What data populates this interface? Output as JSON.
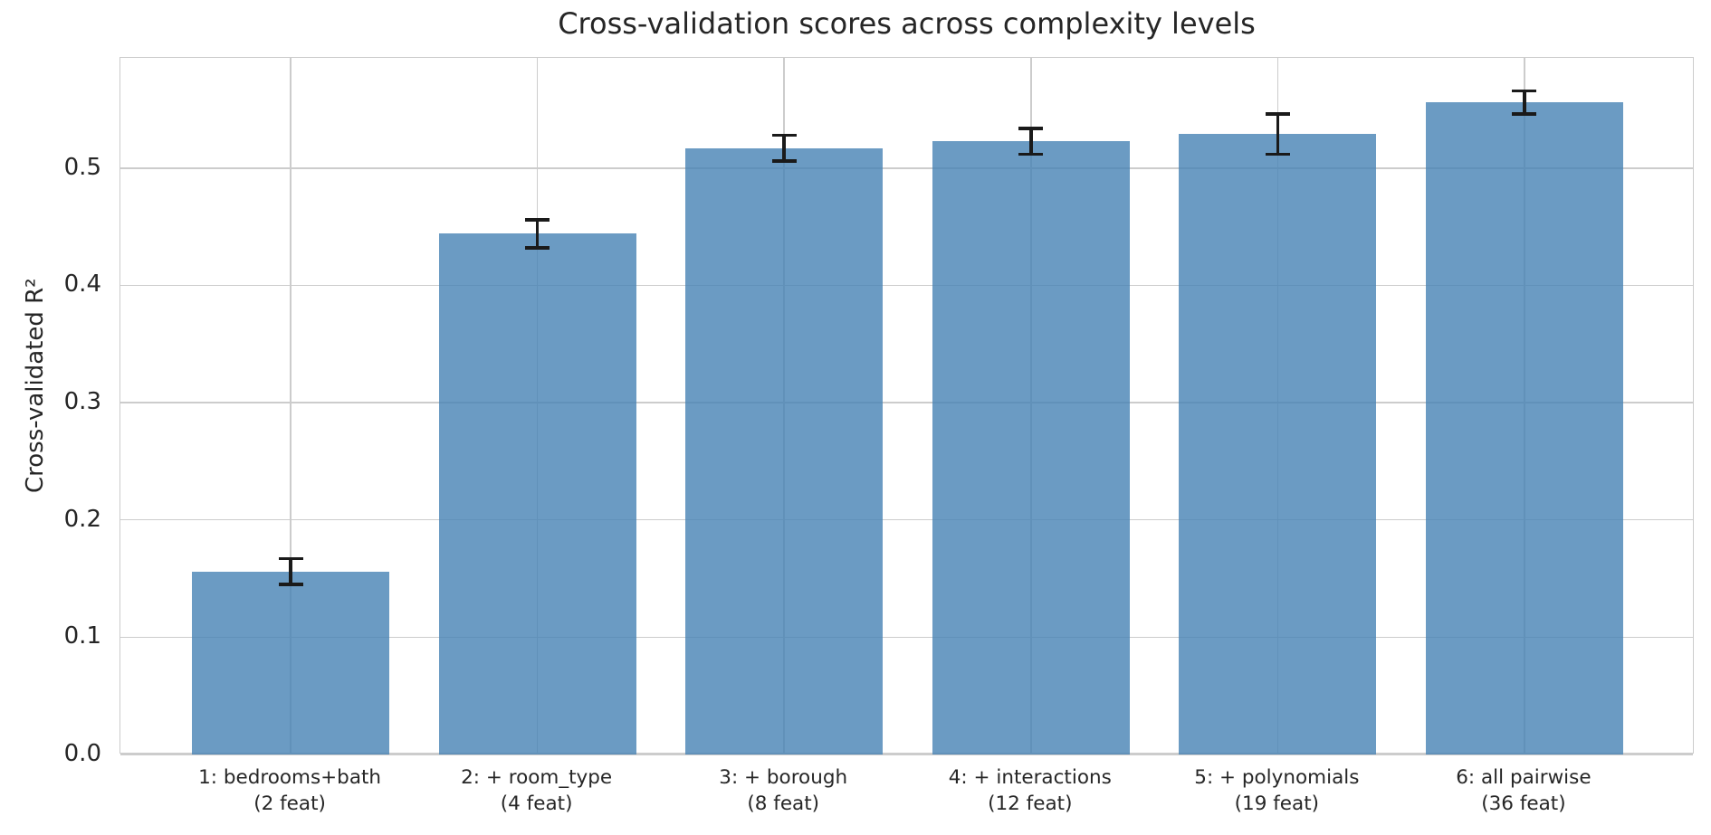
{
  "chart_data": {
    "type": "bar",
    "title": "Cross-validation scores across complexity levels",
    "xlabel": "",
    "ylabel": "Cross-validated R²",
    "categories": [
      "1: bedrooms+bath",
      "2: + room_type",
      "3: + borough",
      "4: + interactions",
      "5: + polynomials",
      "6: all pairwise"
    ],
    "category_sublabels": [
      "(2 feat)",
      "(4 feat)",
      "(8 feat)",
      "(12 feat)",
      "(19 feat)",
      "(36 feat)"
    ],
    "values": [
      0.156,
      0.444,
      0.517,
      0.523,
      0.529,
      0.556
    ],
    "errors": [
      0.011,
      0.012,
      0.011,
      0.011,
      0.017,
      0.01
    ],
    "yticks": [
      0.0,
      0.1,
      0.2,
      0.3,
      0.4,
      0.5
    ],
    "ylim": [
      0,
      0.594
    ],
    "xlim_margin": 0.69,
    "bar_width_fraction": 0.8,
    "grid": true,
    "legend": false,
    "bar_color": "#4682b4",
    "bar_alpha": 0.8,
    "grid_color": "#cccccc",
    "axis_edge_color": "#cccccc",
    "error_color": "#1a1a1a",
    "text_color": "#262626"
  }
}
